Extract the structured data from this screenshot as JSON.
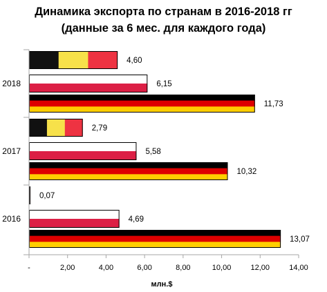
{
  "chart_data": {
    "type": "bar",
    "orientation": "horizontal",
    "title": "Динамика экспорта по странам в 2016-2018 гг",
    "subtitle": "(данные за 6 мес. для каждого года)",
    "xlabel": "млн.$",
    "xlim": [
      0,
      14
    ],
    "x_ticks": [
      "-",
      "2,00",
      "4,00",
      "6,00",
      "8,00",
      "10,00",
      "12,00",
      "14,00"
    ],
    "categories": [
      "2018",
      "2017",
      "2016"
    ],
    "series": [
      {
        "flag_colors": [
          "#111111",
          "#f7e14a",
          "#ee3342"
        ],
        "values": [
          4.6,
          2.79,
          0.07
        ],
        "labels": [
          "4,60",
          "2,79",
          "0,07"
        ]
      },
      {
        "flag_colors": [
          "#ffffff",
          "#dc1f45"
        ],
        "values": [
          6.15,
          5.58,
          4.69
        ],
        "labels": [
          "6,15",
          "5,58",
          "4,69"
        ]
      },
      {
        "flag_colors": [
          "#000000",
          "#dd0000",
          "#ffce00"
        ],
        "values": [
          11.73,
          10.32,
          13.07
        ],
        "labels": [
          "11,73",
          "10,32",
          "13,07"
        ]
      }
    ],
    "grid": false,
    "legend": "none"
  }
}
